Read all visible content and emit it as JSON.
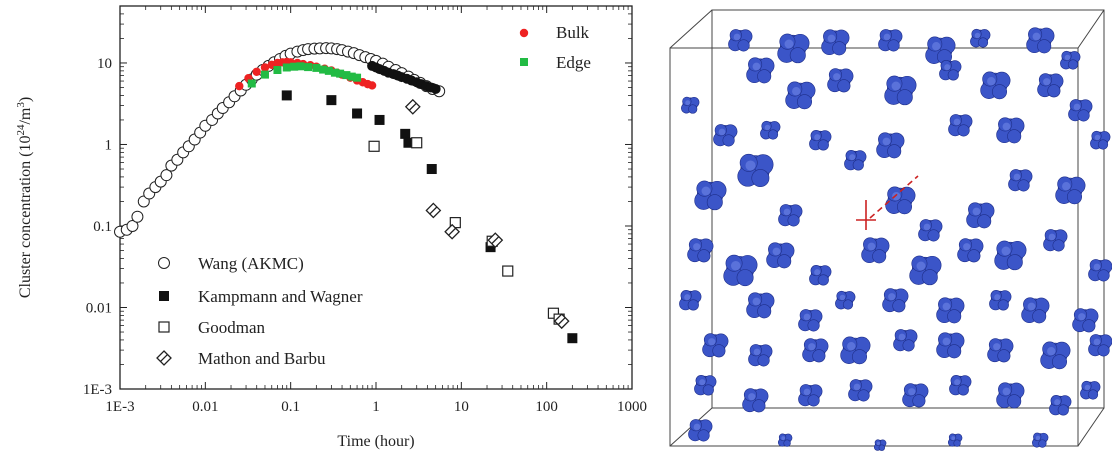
{
  "chart_data": {
    "type": "scatter",
    "xscale": "log",
    "yscale": "log",
    "xlim": [
      0.001,
      1000
    ],
    "ylim": [
      0.001,
      50
    ],
    "xlabel": "Time (hour)",
    "ylabel": "Cluster concentration (10",
    "ylabel_sup1": "24",
    "ylabel_mid": "/m",
    "ylabel_sup2": "3",
    "ylabel_end": ")",
    "xticks": [
      "1E-3",
      "0.01",
      "0.1",
      "1",
      "10",
      "100",
      "1000"
    ],
    "yticks": [
      "1E-3",
      "0.01",
      "0.1",
      "1",
      "10"
    ],
    "legend_upper": [
      "Bulk",
      "Edge"
    ],
    "legend_lower": [
      "Wang (AKMC)",
      "Kampmann and Wagner",
      "Goodman",
      "Mathon and Barbu"
    ],
    "colors": {
      "bulk": "#ee2222",
      "edge": "#22bb44",
      "black": "#111111"
    },
    "series": [
      {
        "name": "Bulk",
        "marker": "filled-circle-red",
        "x": [
          0.025,
          0.032,
          0.04,
          0.05,
          0.06,
          0.07,
          0.08,
          0.09,
          0.1,
          0.12,
          0.14,
          0.17,
          0.2,
          0.25,
          0.3,
          0.35,
          0.4,
          0.5,
          0.6,
          0.7,
          0.8,
          0.9
        ],
        "y": [
          5.2,
          6.5,
          7.8,
          8.8,
          9.5,
          10,
          10.2,
          10.3,
          10.2,
          10,
          9.7,
          9.4,
          9,
          8.5,
          8.1,
          7.6,
          7.2,
          6.6,
          6.1,
          5.8,
          5.5,
          5.3
        ]
      },
      {
        "name": "Edge",
        "marker": "filled-square-green",
        "x": [
          0.035,
          0.05,
          0.07,
          0.09,
          0.11,
          0.13,
          0.16,
          0.2,
          0.24,
          0.28,
          0.33,
          0.38,
          0.45,
          0.52,
          0.6
        ],
        "y": [
          5.6,
          7.2,
          8.2,
          8.8,
          9,
          9.1,
          8.9,
          8.7,
          8.3,
          8,
          7.6,
          7.4,
          7.1,
          6.8,
          6.6
        ]
      },
      {
        "name": "Wang (AKMC)",
        "marker": "open-circle",
        "x": [
          0.001,
          0.0012,
          0.0014,
          0.0016,
          0.0019,
          0.0022,
          0.0026,
          0.003,
          0.0035,
          0.004,
          0.0047,
          0.0055,
          0.0064,
          0.0075,
          0.0087,
          0.01,
          0.012,
          0.014,
          0.016,
          0.019,
          0.022,
          0.026,
          0.03,
          0.035,
          0.04,
          0.047,
          0.055,
          0.064,
          0.075,
          0.087,
          0.1,
          0.12,
          0.14,
          0.16,
          0.19,
          0.22,
          0.26,
          0.3,
          0.35,
          0.4,
          0.47,
          0.55,
          0.64,
          0.75,
          0.87,
          1,
          1.2,
          1.4,
          1.7,
          2,
          2.4,
          2.8,
          3.3,
          3.9,
          4.6,
          5.5
        ],
        "y": [
          0.085,
          0.09,
          0.1,
          0.13,
          0.2,
          0.25,
          0.3,
          0.35,
          0.42,
          0.55,
          0.65,
          0.8,
          0.95,
          1.15,
          1.4,
          1.7,
          2,
          2.4,
          2.8,
          3.3,
          3.9,
          4.6,
          5.4,
          6.3,
          7.2,
          8.2,
          9.2,
          10.2,
          11.2,
          12.2,
          13,
          13.8,
          14.4,
          14.8,
          15,
          15.1,
          15.2,
          15.1,
          14.8,
          14.4,
          13.8,
          13.2,
          12.5,
          11.8,
          11.2,
          10.6,
          9.8,
          9,
          8.2,
          7.5,
          6.8,
          6.2,
          5.7,
          5.2,
          4.8,
          4.5
        ]
      },
      {
        "name": "Wang (AKMC) dense",
        "marker": "filled-circle-black",
        "x": [
          0.9,
          1.0,
          1.1,
          1.25,
          1.4,
          1.6,
          1.8,
          2.0,
          2.3,
          2.6,
          3.0,
          3.4,
          3.9,
          4.4,
          5.0
        ],
        "y": [
          9.2,
          8.8,
          8.4,
          8.0,
          7.6,
          7.3,
          7.0,
          6.7,
          6.4,
          6.1,
          5.8,
          5.5,
          5.2,
          5.0,
          4.8
        ]
      },
      {
        "name": "Kampmann and Wagner",
        "marker": "filled-square",
        "x": [
          0.09,
          0.3,
          0.6,
          1.1,
          2.2,
          2.4,
          4.5,
          22,
          200
        ],
        "y": [
          4,
          3.5,
          2.4,
          2.0,
          1.35,
          1.05,
          0.5,
          0.055,
          0.0042
        ]
      },
      {
        "name": "Goodman",
        "marker": "open-square",
        "x": [
          0.95,
          3.0,
          8.5,
          23,
          35,
          120,
          140
        ],
        "y": [
          0.95,
          1.05,
          0.11,
          0.065,
          0.028,
          0.0085,
          0.0072
        ]
      },
      {
        "name": "Mathon and Barbu",
        "marker": "open-diamond",
        "x": [
          2.7,
          4.7,
          7.8,
          25,
          150
        ],
        "y": [
          2.9,
          0.155,
          0.085,
          0.067,
          0.0068
        ]
      }
    ]
  }
}
